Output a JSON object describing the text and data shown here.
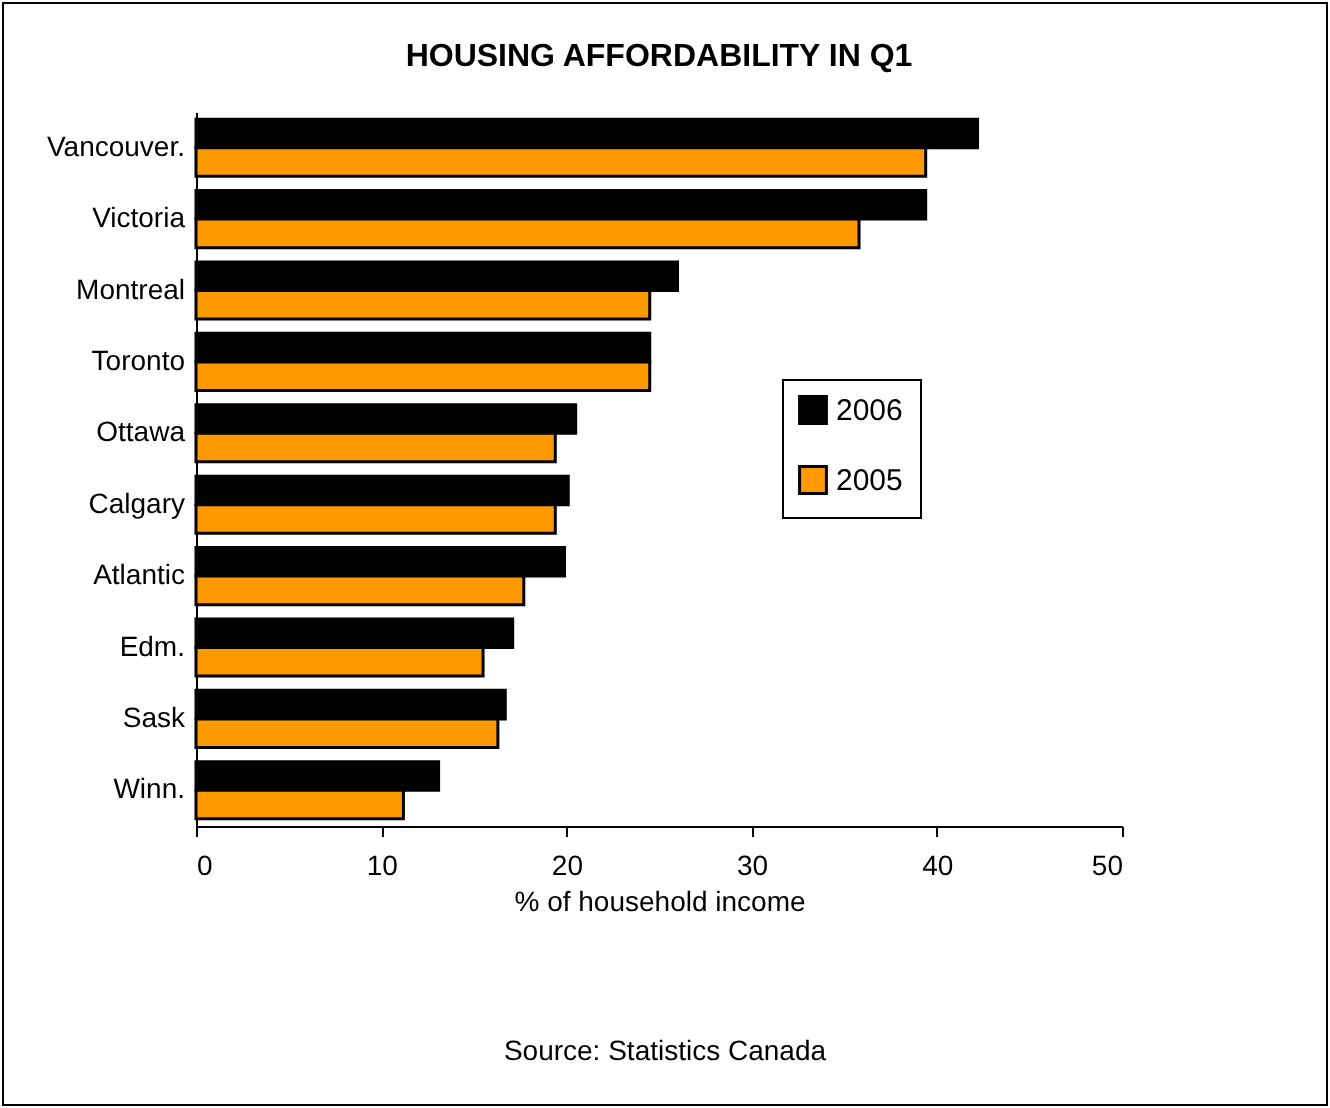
{
  "chart_data": {
    "type": "bar",
    "orientation": "horizontal",
    "title": "HOUSING AFFORDABILITY IN Q1",
    "categories": [
      "Vancouver.",
      "Victoria",
      "Montreal",
      "Toronto",
      "Ottawa",
      "Calgary",
      "Atlantic",
      "Edm.",
      "Sask",
      "Winn."
    ],
    "series": [
      {
        "name": "2006",
        "color": "#000000",
        "values": [
          42.2,
          39.4,
          26.0,
          24.5,
          20.5,
          20.1,
          19.9,
          17.1,
          16.7,
          13.1
        ]
      },
      {
        "name": "2005",
        "color": "#ff9900",
        "values": [
          39.4,
          35.8,
          24.5,
          24.5,
          19.4,
          19.4,
          17.7,
          15.5,
          16.3,
          11.2
        ]
      }
    ],
    "xlabel": "% of household income",
    "xlim": [
      0,
      50
    ],
    "xticks": [
      0,
      10,
      20,
      30,
      40,
      50
    ],
    "legend": "right",
    "grid": false,
    "annotations": [
      "Source: Statistics Canada"
    ]
  }
}
